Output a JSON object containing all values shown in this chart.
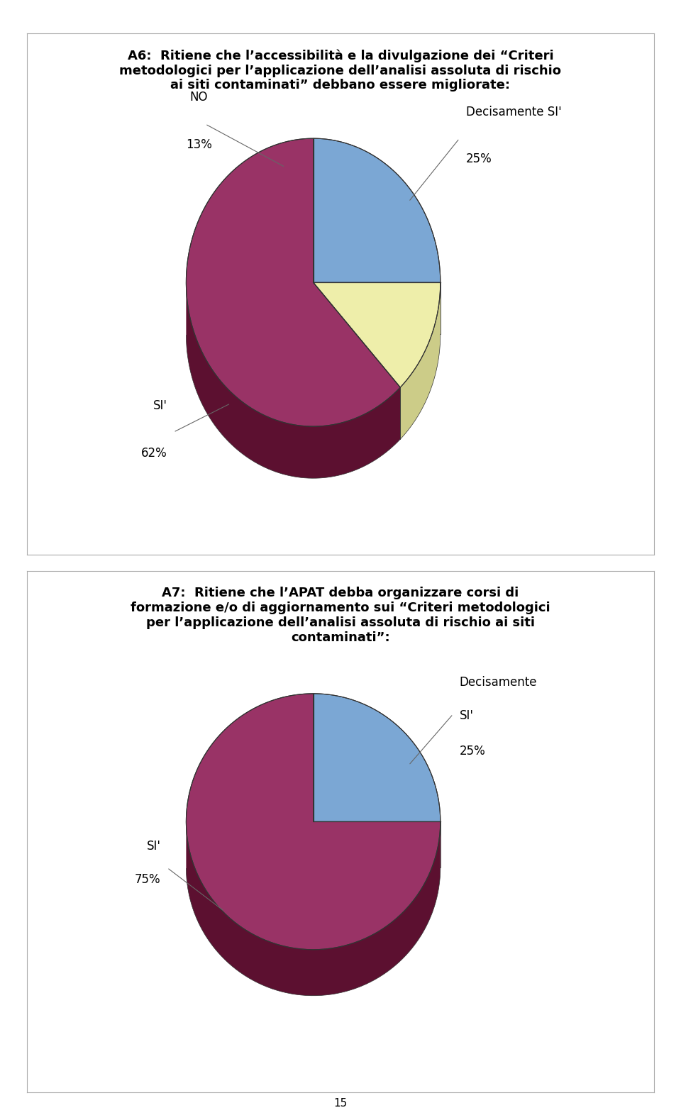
{
  "page_bg": "#ffffff",
  "page_number": "15",
  "chart1": {
    "title_lines": [
      "A6:  Ritiene che l’accessibilità e la divulgazione dei “Criteri",
      "metodologici per l’applicazione dell’analisi assoluta di rischio",
      "ai siti contaminati” debbano essere migliorate:"
    ],
    "slices": [
      62,
      13,
      25
    ],
    "labels": [
      "SI'",
      "NO",
      "Decisamente SI'"
    ],
    "pct_labels": [
      "62%",
      "13%",
      "25%"
    ],
    "colors": [
      "#993366",
      "#EEEEAA",
      "#7BA7D4"
    ],
    "side_colors": [
      "#5C1030",
      "#CCCC88",
      "#4477AA"
    ],
    "start_angle": 90
  },
  "chart2": {
    "title_lines": [
      "A7:  Ritiene che l’APAT debba organizzare corsi di",
      "formazione e/o di aggiornamento sui “Criteri metodologici",
      "per l’applicazione dell’analisi assoluta di rischio ai siti",
      "contaminati”:"
    ],
    "slices": [
      75,
      25
    ],
    "labels": [
      "SI'",
      "Decisamente SI'"
    ],
    "pct_labels": [
      "75%",
      "25%"
    ],
    "colors": [
      "#993366",
      "#7BA7D4"
    ],
    "side_colors": [
      "#5C1030",
      "#4477AA"
    ],
    "start_angle": 90
  },
  "title_fontsize": 13,
  "label_fontsize": 12
}
